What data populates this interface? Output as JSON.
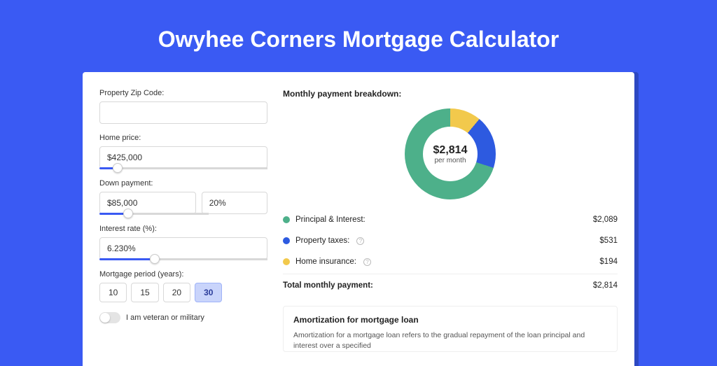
{
  "page": {
    "title": "Owyhee Corners Mortgage Calculator",
    "background_color": "#3a5af3",
    "card_background": "#ffffff",
    "card_shadow_color": "#2d48c2"
  },
  "form": {
    "zip": {
      "label": "Property Zip Code:",
      "value": ""
    },
    "home_price": {
      "label": "Home price:",
      "value": "$425,000",
      "slider_percent": 8
    },
    "down_payment": {
      "label": "Down payment:",
      "amount": "$85,000",
      "percent": "20%",
      "slider_percent": 22
    },
    "interest_rate": {
      "label": "Interest rate (%):",
      "value": "6.230%",
      "slider_percent": 30
    },
    "period": {
      "label": "Mortgage period (years):",
      "options": [
        "10",
        "15",
        "20",
        "30"
      ],
      "selected": "30"
    },
    "veteran": {
      "label": "I am veteran or military",
      "on": false
    }
  },
  "breakdown": {
    "title": "Monthly payment breakdown:",
    "donut": {
      "amount": "$2,814",
      "sub": "per month",
      "slices": [
        {
          "key": "principal_interest",
          "value": 2089,
          "color": "#4db08a"
        },
        {
          "key": "property_taxes",
          "value": 531,
          "color": "#2d5ae0"
        },
        {
          "key": "home_insurance",
          "value": 194,
          "color": "#f2c94c"
        }
      ]
    },
    "items": [
      {
        "label": "Principal & Interest:",
        "value": "$2,089",
        "color": "#4db08a",
        "info": false
      },
      {
        "label": "Property taxes:",
        "value": "$531",
        "color": "#2d5ae0",
        "info": true
      },
      {
        "label": "Home insurance:",
        "value": "$194",
        "color": "#f2c94c",
        "info": true
      }
    ],
    "total": {
      "label": "Total monthly payment:",
      "value": "$2,814"
    }
  },
  "amortization": {
    "title": "Amortization for mortgage loan",
    "text": "Amortization for a mortgage loan refers to the gradual repayment of the loan principal and interest over a specified"
  }
}
